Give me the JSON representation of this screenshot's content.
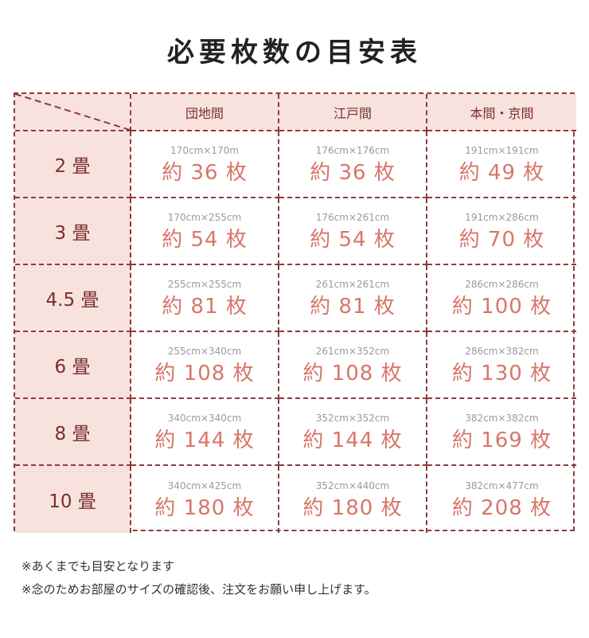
{
  "title": "必要枚数の目安表",
  "colors": {
    "border": "#8e3b3b",
    "header_bg": "#f7e2de",
    "label": "#7a2e2e",
    "value": "#d8766a",
    "dimension": "#9a9a9a"
  },
  "table": {
    "headers": [
      "団地間",
      "江戸間",
      "本間・京間"
    ],
    "rows": [
      {
        "label": "2 畳",
        "cells": [
          {
            "dim": "170cm×170m",
            "count": "約 36 枚"
          },
          {
            "dim": "176cm×176cm",
            "count": "約 36 枚"
          },
          {
            "dim": "191cm×191cm",
            "count": "約 49 枚"
          }
        ]
      },
      {
        "label": "3 畳",
        "cells": [
          {
            "dim": "170cm×255cm",
            "count": "約 54 枚"
          },
          {
            "dim": "176cm×261cm",
            "count": "約 54 枚"
          },
          {
            "dim": "191cm×286cm",
            "count": "約 70 枚"
          }
        ]
      },
      {
        "label": "4.5 畳",
        "cells": [
          {
            "dim": "255cm×255cm",
            "count": "約 81 枚"
          },
          {
            "dim": "261cm×261cm",
            "count": "約 81 枚"
          },
          {
            "dim": "286cm×286cm",
            "count": "約 100 枚"
          }
        ]
      },
      {
        "label": "6 畳",
        "cells": [
          {
            "dim": "255cm×340cm",
            "count": "約 108 枚"
          },
          {
            "dim": "261cm×352cm",
            "count": "約 108 枚"
          },
          {
            "dim": "286cm×382cm",
            "count": "約 130 枚"
          }
        ]
      },
      {
        "label": "8 畳",
        "cells": [
          {
            "dim": "340cm×340cm",
            "count": "約 144 枚"
          },
          {
            "dim": "352cm×352cm",
            "count": "約 144 枚"
          },
          {
            "dim": "382cm×382cm",
            "count": "約 169 枚"
          }
        ]
      },
      {
        "label": "10 畳",
        "cells": [
          {
            "dim": "340cm×425cm",
            "count": "約 180 枚"
          },
          {
            "dim": "352cm×440cm",
            "count": "約 180 枚"
          },
          {
            "dim": "382cm×477cm",
            "count": "約 208 枚"
          }
        ]
      }
    ]
  },
  "notes": [
    "※あくまでも目安となります",
    "※念のためお部屋のサイズの確認後、注文をお願い申し上げます。"
  ]
}
